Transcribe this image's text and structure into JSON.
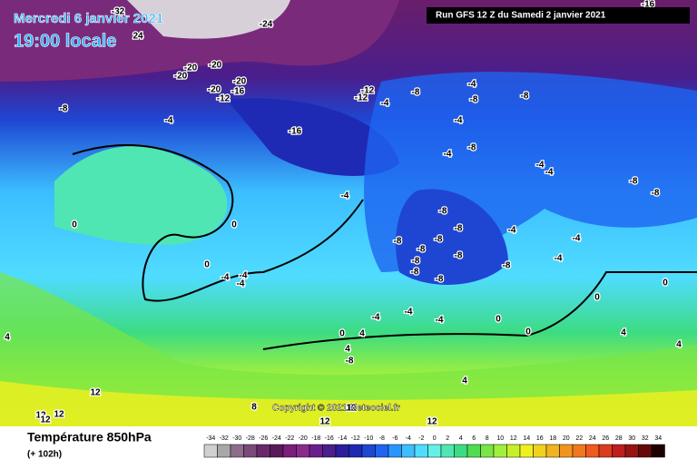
{
  "header": {
    "date": "Mercredi 6 janvier 2021",
    "time": "19:00 locale",
    "run": "Run GFS 12 Z du Samedi 2 janvier 2021"
  },
  "copyright": "Copyright © 2021 Meteociel.fr",
  "footer": {
    "title": "Température 850hPa",
    "subtitle": "(+ 102h)"
  },
  "scale": {
    "values": [
      -34,
      -32,
      -30,
      -28,
      -26,
      -24,
      -22,
      -20,
      -18,
      -16,
      -14,
      -12,
      -10,
      -8,
      -6,
      -4,
      -2,
      0,
      2,
      4,
      6,
      8,
      10,
      12,
      14,
      16,
      18,
      20,
      22,
      24,
      26,
      28,
      30,
      32,
      34
    ],
    "colors": [
      "#d0d0d0",
      "#a8a8a8",
      "#8c6e8c",
      "#7a4a7a",
      "#6a2a6a",
      "#5a1a5a",
      "#7a1e7a",
      "#8c2a8c",
      "#6a1e8c",
      "#4a1e8c",
      "#2a1e9c",
      "#1e2ab4",
      "#1e46d2",
      "#1e64f0",
      "#2896ff",
      "#3cbeff",
      "#50dcff",
      "#64f0e6",
      "#50e6b4",
      "#3cdc82",
      "#50dc50",
      "#78e646",
      "#a0f03c",
      "#c8f028",
      "#f0f01e",
      "#f0d21e",
      "#f0b41e",
      "#f0961e",
      "#f0781e",
      "#f05a1e",
      "#dc3c1e",
      "#be1e1e",
      "#961414",
      "#640a0a",
      "#1e0000"
    ]
  },
  "map_labels": [
    -24,
    -32,
    24,
    -20,
    -20,
    -20,
    -20,
    -20,
    -16,
    -12,
    -8,
    -4,
    -16,
    -12,
    -12,
    -8,
    -4,
    -4,
    -8,
    -8,
    -4,
    -8,
    -4,
    -4,
    -4,
    -8,
    -8,
    -4,
    0,
    0,
    0,
    -4,
    -4,
    -4,
    -8,
    -8,
    -8,
    -8,
    -8,
    -8,
    -8,
    -8,
    -8,
    -8,
    -4,
    -4,
    -4,
    0,
    0,
    -4,
    -4,
    -4,
    0,
    0,
    0,
    4,
    4,
    -8,
    4,
    4,
    4,
    4,
    8,
    12,
    12,
    12,
    12,
    12,
    12,
    12,
    -16
  ]
}
